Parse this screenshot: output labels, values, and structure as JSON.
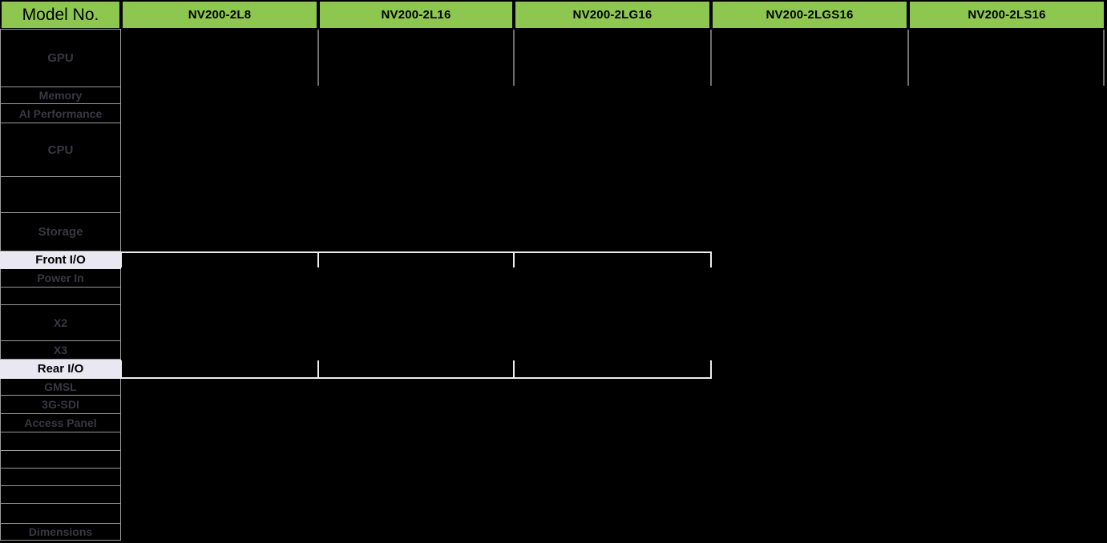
{
  "header": {
    "model_no_label": "Model No.",
    "models": [
      "NV200-2L8",
      "NV200-2L16",
      "NV200-2LG16",
      "NV200-2LGS16",
      "NV200-2LS16"
    ]
  },
  "rows": [
    {
      "label": "GPU",
      "type": "spec"
    },
    {
      "label": "Memory",
      "type": "spec"
    },
    {
      "label": "AI Performance",
      "type": "spec"
    },
    {
      "label": "CPU",
      "type": "spec"
    },
    {
      "label": "",
      "type": "blank"
    },
    {
      "label": "Storage",
      "type": "spec"
    },
    {
      "label": "Front I/O",
      "type": "highlight"
    },
    {
      "label": "Power In",
      "type": "spec"
    },
    {
      "label": "",
      "type": "blank"
    },
    {
      "label": "X2",
      "type": "spec"
    },
    {
      "label": "X3",
      "type": "spec"
    },
    {
      "label": "Rear I/O",
      "type": "highlight"
    },
    {
      "label": "GMSL",
      "type": "spec"
    },
    {
      "label": "3G-SDI",
      "type": "spec"
    },
    {
      "label": "Access Panel",
      "type": "spec"
    },
    {
      "label": "",
      "type": "blank"
    },
    {
      "label": "",
      "type": "blank"
    },
    {
      "label": "",
      "type": "blank"
    },
    {
      "label": "",
      "type": "blank"
    },
    {
      "label": "",
      "type": "blank"
    },
    {
      "label": "Dimensions",
      "type": "spec"
    }
  ],
  "colors": {
    "header_green": "#8dc750",
    "highlight_bg": "#e9e8f2",
    "label_text": "#3a3840",
    "grid_line": "#9a9a9a",
    "gpu_divider": "#6e6e6e",
    "white_line": "#ededed",
    "background": "#000000"
  }
}
